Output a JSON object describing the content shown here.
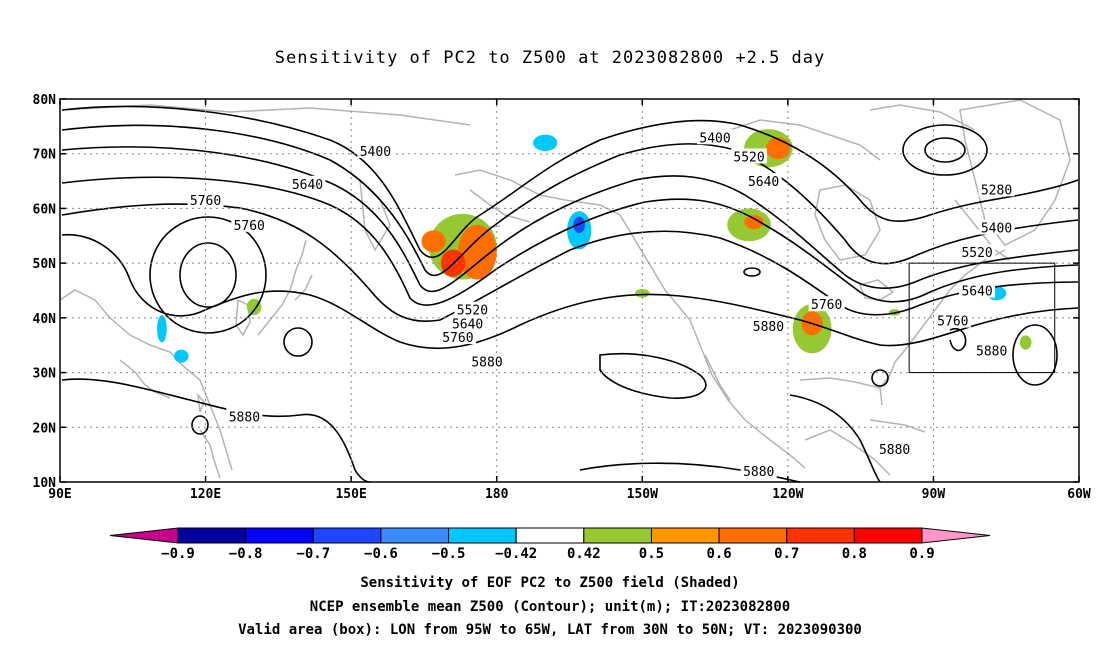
{
  "title": "Sensitivity of PC2 to Z500 at 2023082800 +2.5 day",
  "map": {
    "lon_range": [
      90,
      300
    ],
    "lat_range": [
      10,
      80
    ],
    "lat_ticks": [
      {
        "value": 80,
        "label": "80N"
      },
      {
        "value": 70,
        "label": "70N"
      },
      {
        "value": 60,
        "label": "60N"
      },
      {
        "value": 50,
        "label": "50N"
      },
      {
        "value": 40,
        "label": "40N"
      },
      {
        "value": 30,
        "label": "30N"
      },
      {
        "value": 20,
        "label": "20N"
      },
      {
        "value": 10,
        "label": "10N"
      }
    ],
    "lon_ticks": [
      {
        "value": 90,
        "label": "90E"
      },
      {
        "value": 120,
        "label": "120E"
      },
      {
        "value": 150,
        "label": "150E"
      },
      {
        "value": 180,
        "label": "180"
      },
      {
        "value": 210,
        "label": "150W"
      },
      {
        "value": 240,
        "label": "120W"
      },
      {
        "value": 270,
        "label": "90W"
      },
      {
        "value": 300,
        "label": "60W"
      }
    ],
    "valid_box": {
      "lon_min": 265,
      "lon_max": 295,
      "lat_min": 30,
      "lat_max": 50
    },
    "contour_labels": [
      {
        "text": "5400",
        "lon": 155,
        "lat": 70.5
      },
      {
        "text": "5400",
        "lon": 225,
        "lat": 73
      },
      {
        "text": "5520",
        "lon": 232,
        "lat": 69.5
      },
      {
        "text": "5640",
        "lon": 141,
        "lat": 64.5
      },
      {
        "text": "5640",
        "lon": 235,
        "lat": 65
      },
      {
        "text": "5760",
        "lon": 120,
        "lat": 61.5
      },
      {
        "text": "5760",
        "lon": 129,
        "lat": 57
      },
      {
        "text": "5280",
        "lon": 283,
        "lat": 63.5
      },
      {
        "text": "5400",
        "lon": 283,
        "lat": 56.5
      },
      {
        "text": "5520",
        "lon": 279,
        "lat": 52
      },
      {
        "text": "5640",
        "lon": 279,
        "lat": 45
      },
      {
        "text": "5760",
        "lon": 248,
        "lat": 42.5
      },
      {
        "text": "5760",
        "lon": 274,
        "lat": 39.5
      },
      {
        "text": "5880",
        "lon": 282,
        "lat": 34
      },
      {
        "text": "5520",
        "lon": 175,
        "lat": 41.5
      },
      {
        "text": "5640",
        "lon": 174,
        "lat": 39
      },
      {
        "text": "5760",
        "lon": 172,
        "lat": 36.5
      },
      {
        "text": "5880",
        "lon": 178,
        "lat": 32
      },
      {
        "text": "5880",
        "lon": 236,
        "lat": 38.5
      },
      {
        "text": "5880",
        "lon": 128,
        "lat": 22
      },
      {
        "text": "5880",
        "lon": 262,
        "lat": 16
      },
      {
        "text": "5880",
        "lon": 234,
        "lat": 12
      }
    ],
    "sensitivity_patches": [
      {
        "lon": 173,
        "lat": 53,
        "rx": 7,
        "ry": 6,
        "level": 0.42
      },
      {
        "lon": 176,
        "lat": 52,
        "rx": 4,
        "ry": 5,
        "level": 0.6
      },
      {
        "lon": 171,
        "lat": 50,
        "rx": 2.5,
        "ry": 2.5,
        "level": 0.7
      },
      {
        "lon": 167,
        "lat": 54,
        "rx": 2.5,
        "ry": 2,
        "level": 0.6
      },
      {
        "lon": 236,
        "lat": 71,
        "rx": 5,
        "ry": 3.5,
        "level": 0.42
      },
      {
        "lon": 238,
        "lat": 71,
        "rx": 2.5,
        "ry": 2,
        "level": 0.6
      },
      {
        "lon": 232,
        "lat": 57,
        "rx": 4.5,
        "ry": 3,
        "level": 0.42
      },
      {
        "lon": 233,
        "lat": 57.5,
        "rx": 2,
        "ry": 1.3,
        "level": 0.6
      },
      {
        "lon": 245,
        "lat": 38,
        "rx": 4,
        "ry": 4.5,
        "level": 0.42
      },
      {
        "lon": 245,
        "lat": 39,
        "rx": 2.2,
        "ry": 2.2,
        "level": 0.6
      },
      {
        "lon": 197,
        "lat": 56,
        "rx": 2.5,
        "ry": 3.5,
        "level": -0.42
      },
      {
        "lon": 197,
        "lat": 57,
        "rx": 1.2,
        "ry": 1.5,
        "level": -0.6
      },
      {
        "lon": 190,
        "lat": 72,
        "rx": 2.5,
        "ry": 1.5,
        "level": -0.42
      },
      {
        "lon": 283,
        "lat": 44.5,
        "rx": 2,
        "ry": 1.3,
        "level": -0.42
      },
      {
        "lon": 111,
        "lat": 38,
        "rx": 1,
        "ry": 2.5,
        "level": -0.42
      },
      {
        "lon": 115,
        "lat": 33,
        "rx": 1.5,
        "ry": 1.2,
        "level": -0.42
      },
      {
        "lon": 130,
        "lat": 42,
        "rx": 1.5,
        "ry": 1.5,
        "level": 0.42
      },
      {
        "lon": 289,
        "lat": 35.5,
        "rx": 1.2,
        "ry": 1.3,
        "level": 0.42
      },
      {
        "lon": 210,
        "lat": 44.5,
        "rx": 1.5,
        "ry": 0.8,
        "level": 0.42
      },
      {
        "lon": 262,
        "lat": 41,
        "rx": 1.2,
        "ry": 0.6,
        "level": 0.42
      }
    ]
  },
  "colorbar": {
    "levels": [
      "-0.9",
      "-0.8",
      "-0.7",
      "-0.6",
      "-0.5",
      "-0.42",
      "0.42",
      "0.5",
      "0.6",
      "0.7",
      "0.8",
      "0.9"
    ],
    "colors": [
      "#c8008c",
      "#0000a0",
      "#0000ff",
      "#1e46ff",
      "#3c8cff",
      "#00c8ff",
      "#ffffff",
      "#96c832",
      "#ff9600",
      "#ff6e00",
      "#ff3200",
      "#ff0000",
      "#ff96c8"
    ]
  },
  "captions": {
    "line1": "Sensitivity of EOF PC2 to Z500 field (Shaded)",
    "line2": "NCEP ensemble mean Z500 (Contour); unit(m); IT:2023082800",
    "line3": "Valid area (box): LON from 95W to 65W, LAT from 30N to 50N; VT: 2023090300"
  }
}
